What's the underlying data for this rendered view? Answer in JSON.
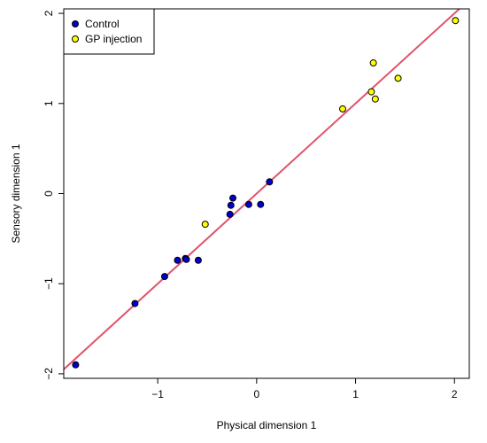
{
  "chart_data": {
    "type": "scatter",
    "title": "",
    "xlabel": "Physical dimension 1",
    "ylabel": "Sensory dimension 1",
    "xlim": [
      -1.95,
      2.15
    ],
    "ylim": [
      -2.05,
      2.05
    ],
    "xticks": [
      -1,
      0,
      1,
      2
    ],
    "yticks": [
      -2,
      -1,
      0,
      1,
      2
    ],
    "grid": false,
    "legend": "top-left",
    "series": [
      {
        "name": "Control",
        "color": "#0000cd",
        "points": [
          {
            "x": -1.83,
            "y": -1.9
          },
          {
            "x": -1.23,
            "y": -1.22
          },
          {
            "x": -0.93,
            "y": -0.92
          },
          {
            "x": -0.8,
            "y": -0.74
          },
          {
            "x": -0.72,
            "y": -0.72
          },
          {
            "x": -0.71,
            "y": -0.73
          },
          {
            "x": -0.59,
            "y": -0.74
          },
          {
            "x": -0.27,
            "y": -0.23
          },
          {
            "x": -0.26,
            "y": -0.13
          },
          {
            "x": -0.24,
            "y": -0.05
          },
          {
            "x": -0.08,
            "y": -0.12
          },
          {
            "x": 0.04,
            "y": -0.12
          },
          {
            "x": 0.13,
            "y": 0.13
          }
        ]
      },
      {
        "name": "GP injection",
        "color": "#ffff00",
        "points": [
          {
            "x": -0.52,
            "y": -0.34
          },
          {
            "x": 0.87,
            "y": 0.94
          },
          {
            "x": 1.16,
            "y": 1.13
          },
          {
            "x": 1.18,
            "y": 1.45
          },
          {
            "x": 1.2,
            "y": 1.05
          },
          {
            "x": 1.43,
            "y": 1.28
          },
          {
            "x": 2.01,
            "y": 1.92
          }
        ]
      }
    ],
    "fit_line": {
      "color": "#df536b",
      "intercept": 0.0,
      "slope": 1.0,
      "x_range": [
        -1.95,
        2.15
      ]
    }
  }
}
